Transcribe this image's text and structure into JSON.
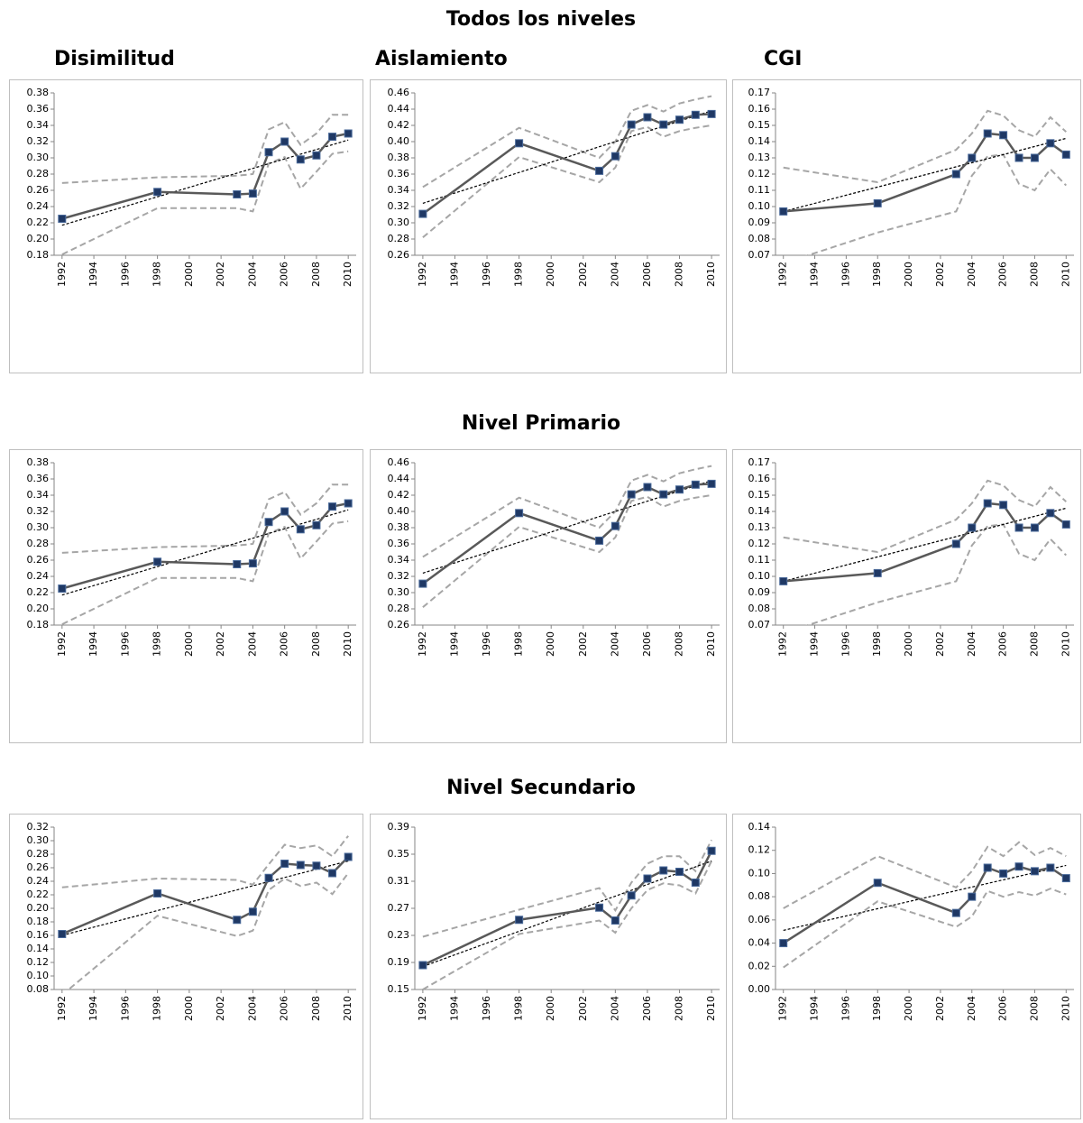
{
  "row_titles": [
    "Todos los niveles",
    "Nivel Primario",
    "Nivel Secundario"
  ],
  "column_titles": [
    "Disimilitud",
    "Aislamiento",
    "CGI"
  ],
  "chart_data": [
    {
      "type": "line",
      "x": [
        1992,
        1998,
        2003,
        2004,
        2005,
        2006,
        2007,
        2008,
        2009,
        2010
      ],
      "values": [
        0.225,
        0.258,
        0.255,
        0.256,
        0.307,
        0.32,
        0.298,
        0.303,
        0.326,
        0.33
      ],
      "upper": [
        0.269,
        0.276,
        0.278,
        0.28,
        0.335,
        0.344,
        0.316,
        0.33,
        0.353,
        0.353
      ],
      "lower": [
        0.181,
        0.238,
        0.238,
        0.234,
        0.293,
        0.301,
        0.262,
        0.283,
        0.305,
        0.308
      ],
      "trend": {
        "x": [
          1992,
          2010
        ],
        "values": [
          0.217,
          0.322
        ]
      },
      "xlim": [
        1991.5,
        2010.5
      ],
      "xticks": [
        1992,
        1994,
        1996,
        1998,
        2000,
        2002,
        2004,
        2006,
        2008,
        2010
      ],
      "ylim": [
        0.18,
        0.38
      ],
      "yticks": [
        0.18,
        {
          "value": 0.2,
          "label": "0.20"
        },
        0.22,
        0.24,
        0.26,
        0.28,
        {
          "value": 0.3,
          "label": "0.30"
        },
        0.32,
        0.34,
        0.36,
        0.38
      ],
      "color": "#595959",
      "marker_color": "#1f3864",
      "ci_color": "#a6a6a6",
      "trend_color": "#000000"
    },
    {
      "type": "line",
      "x": [
        1992,
        1998,
        2003,
        2004,
        2005,
        2006,
        2007,
        2008,
        2009,
        2010
      ],
      "values": [
        0.311,
        0.398,
        0.364,
        0.382,
        0.421,
        0.43,
        0.421,
        0.427,
        0.433,
        0.434
      ],
      "upper": [
        0.344,
        0.417,
        0.38,
        0.4,
        0.438,
        0.445,
        0.437,
        0.447,
        0.452,
        0.456
      ],
      "lower": [
        0.282,
        0.381,
        0.35,
        0.368,
        0.413,
        0.418,
        0.406,
        0.413,
        0.417,
        0.42
      ],
      "trend": {
        "x": [
          1992,
          2010
        ],
        "values": [
          0.324,
          0.438
        ]
      },
      "xlim": [
        1991.5,
        2010.5
      ],
      "xticks": [
        1992,
        1994,
        1996,
        1998,
        2000,
        2002,
        2004,
        2006,
        2008,
        2010
      ],
      "ylim": [
        0.26,
        0.46
      ],
      "yticks": [
        0.26,
        0.28,
        {
          "value": 0.3,
          "label": "0.30"
        },
        0.32,
        0.34,
        0.36,
        0.38,
        {
          "value": 0.4,
          "label": "0.40"
        },
        0.42,
        0.44,
        0.46
      ],
      "color": "#595959",
      "marker_color": "#1f3864",
      "ci_color": "#a6a6a6",
      "trend_color": "#000000"
    },
    {
      "type": "line",
      "x": [
        1992,
        1998,
        2003,
        2004,
        2005,
        2006,
        2007,
        2008,
        2009,
        2010
      ],
      "values": [
        0.097,
        0.102,
        0.12,
        0.13,
        0.145,
        0.144,
        0.13,
        0.13,
        0.139,
        0.132
      ],
      "upper": [
        0.124,
        0.115,
        0.135,
        0.145,
        0.159,
        0.156,
        0.147,
        0.143,
        0.155,
        0.146
      ],
      "lower": [
        0.065,
        0.084,
        0.097,
        0.119,
        0.131,
        0.132,
        0.114,
        0.11,
        0.123,
        0.113
      ],
      "trend": {
        "x": [
          1992,
          2010
        ],
        "values": [
          0.097,
          0.142
        ]
      },
      "xlim": [
        1991.5,
        2010.5
      ],
      "xticks": [
        1992,
        1994,
        1996,
        1998,
        2000,
        2002,
        2004,
        2006,
        2008,
        2010
      ],
      "ylim": [
        0.07,
        0.17
      ],
      "yticks": [
        0.07,
        0.08,
        0.09,
        {
          "value": 0.1,
          "label": "0.10"
        },
        0.11,
        0.12,
        0.13,
        0.14,
        0.15,
        0.16,
        0.17
      ],
      "color": "#595959",
      "marker_color": "#1f3864",
      "ci_color": "#a6a6a6",
      "trend_color": "#000000"
    },
    {
      "type": "line",
      "x": [
        1992,
        1998,
        2003,
        2004,
        2005,
        2006,
        2007,
        2008,
        2009,
        2010
      ],
      "values": [
        0.225,
        0.258,
        0.255,
        0.256,
        0.307,
        0.32,
        0.298,
        0.303,
        0.326,
        0.33
      ],
      "upper": [
        0.269,
        0.276,
        0.278,
        0.28,
        0.335,
        0.344,
        0.316,
        0.33,
        0.353,
        0.353
      ],
      "lower": [
        0.181,
        0.238,
        0.238,
        0.234,
        0.293,
        0.301,
        0.262,
        0.283,
        0.305,
        0.308
      ],
      "trend": {
        "x": [
          1992,
          2010
        ],
        "values": [
          0.217,
          0.322
        ]
      },
      "xlim": [
        1991.5,
        2010.5
      ],
      "xticks": [
        1992,
        1994,
        1996,
        1998,
        2000,
        2002,
        2004,
        2006,
        2008,
        2010
      ],
      "ylim": [
        0.18,
        0.38
      ],
      "yticks": [
        0.18,
        {
          "value": 0.2,
          "label": "0.20"
        },
        0.22,
        0.24,
        0.26,
        0.28,
        {
          "value": 0.3,
          "label": "0.30"
        },
        0.32,
        0.34,
        0.36,
        0.38
      ],
      "color": "#595959",
      "marker_color": "#1f3864",
      "ci_color": "#a6a6a6",
      "trend_color": "#000000"
    },
    {
      "type": "line",
      "x": [
        1992,
        1998,
        2003,
        2004,
        2005,
        2006,
        2007,
        2008,
        2009,
        2010
      ],
      "values": [
        0.311,
        0.398,
        0.364,
        0.382,
        0.421,
        0.43,
        0.421,
        0.427,
        0.433,
        0.434
      ],
      "upper": [
        0.344,
        0.417,
        0.38,
        0.4,
        0.438,
        0.445,
        0.437,
        0.447,
        0.452,
        0.456
      ],
      "lower": [
        0.282,
        0.381,
        0.35,
        0.368,
        0.413,
        0.418,
        0.406,
        0.413,
        0.417,
        0.42
      ],
      "trend": {
        "x": [
          1992,
          2010
        ],
        "values": [
          0.324,
          0.438
        ]
      },
      "xlim": [
        1991.5,
        2010.5
      ],
      "xticks": [
        1992,
        1994,
        1996,
        1998,
        2000,
        2002,
        2004,
        2006,
        2008,
        2010
      ],
      "ylim": [
        0.26,
        0.46
      ],
      "yticks": [
        0.26,
        0.28,
        {
          "value": 0.3,
          "label": "0.30"
        },
        0.32,
        0.34,
        0.36,
        0.38,
        {
          "value": 0.4,
          "label": "0.40"
        },
        0.42,
        0.44,
        0.46
      ],
      "color": "#595959",
      "marker_color": "#1f3864",
      "ci_color": "#a6a6a6",
      "trend_color": "#000000"
    },
    {
      "type": "line",
      "x": [
        1992,
        1998,
        2003,
        2004,
        2005,
        2006,
        2007,
        2008,
        2009,
        2010
      ],
      "values": [
        0.097,
        0.102,
        0.12,
        0.13,
        0.145,
        0.144,
        0.13,
        0.13,
        0.139,
        0.132
      ],
      "upper": [
        0.124,
        0.115,
        0.135,
        0.145,
        0.159,
        0.156,
        0.147,
        0.143,
        0.155,
        0.146
      ],
      "lower": [
        0.065,
        0.084,
        0.097,
        0.119,
        0.131,
        0.132,
        0.114,
        0.11,
        0.123,
        0.113
      ],
      "trend": {
        "x": [
          1992,
          2010
        ],
        "values": [
          0.097,
          0.142
        ]
      },
      "xlim": [
        1991.5,
        2010.5
      ],
      "xticks": [
        1992,
        1994,
        1996,
        1998,
        2000,
        2002,
        2004,
        2006,
        2008,
        2010
      ],
      "ylim": [
        0.07,
        0.17
      ],
      "yticks": [
        0.07,
        0.08,
        0.09,
        {
          "value": 0.1,
          "label": "0.10"
        },
        0.11,
        0.12,
        0.13,
        0.14,
        0.15,
        0.16,
        0.17
      ],
      "color": "#595959",
      "marker_color": "#1f3864",
      "ci_color": "#a6a6a6",
      "trend_color": "#000000"
    },
    {
      "type": "line",
      "x": [
        1992,
        1998,
        2003,
        2004,
        2005,
        2006,
        2007,
        2008,
        2009,
        2010
      ],
      "values": [
        0.162,
        0.222,
        0.183,
        0.195,
        0.245,
        0.266,
        0.264,
        0.263,
        0.252,
        0.276
      ],
      "upper": [
        0.231,
        0.244,
        0.242,
        0.235,
        0.265,
        0.294,
        0.289,
        0.293,
        0.277,
        0.307
      ],
      "lower": [
        0.072,
        0.189,
        0.159,
        0.167,
        0.227,
        0.244,
        0.233,
        0.238,
        0.221,
        0.252
      ],
      "trend": {
        "x": [
          1992,
          2010
        ],
        "values": [
          0.16,
          0.27
        ]
      },
      "xlim": [
        1991.5,
        2010.5
      ],
      "xticks": [
        1992,
        1994,
        1996,
        1998,
        2000,
        2002,
        2004,
        2006,
        2008,
        2010
      ],
      "ylim": [
        0.08,
        0.32
      ],
      "yticks": [
        0.08,
        {
          "value": 0.1,
          "label": "0.10"
        },
        0.12,
        0.14,
        0.16,
        0.18,
        {
          "value": 0.2,
          "label": "0.20"
        },
        0.22,
        0.24,
        0.26,
        0.28,
        {
          "value": 0.3,
          "label": "0.30"
        },
        0.32
      ],
      "color": "#595959",
      "marker_color": "#1f3864",
      "ci_color": "#a6a6a6",
      "trend_color": "#000000"
    },
    {
      "type": "line",
      "x": [
        1992,
        1998,
        2003,
        2004,
        2005,
        2006,
        2007,
        2008,
        2009,
        2010
      ],
      "values": [
        0.186,
        0.253,
        0.271,
        0.252,
        0.289,
        0.314,
        0.326,
        0.324,
        0.308,
        0.355
      ],
      "upper": [
        0.228,
        0.268,
        0.3,
        0.267,
        0.308,
        0.336,
        0.347,
        0.347,
        0.325,
        0.371
      ],
      "lower": [
        0.15,
        0.232,
        0.252,
        0.234,
        0.27,
        0.297,
        0.307,
        0.304,
        0.292,
        0.34
      ],
      "trend": {
        "x": [
          1992,
          2010
        ],
        "values": [
          0.184,
          0.34
        ]
      },
      "xlim": [
        1991.5,
        2010.5
      ],
      "xticks": [
        1992,
        1994,
        1996,
        1998,
        2000,
        2002,
        2004,
        2006,
        2008,
        2010
      ],
      "ylim": [
        0.15,
        0.39
      ],
      "yticks": [
        0.15,
        0.19,
        0.23,
        0.27,
        0.31,
        0.35,
        0.39
      ],
      "color": "#595959",
      "marker_color": "#1f3864",
      "ci_color": "#a6a6a6",
      "trend_color": "#000000"
    },
    {
      "type": "line",
      "x": [
        1992,
        1998,
        2003,
        2004,
        2005,
        2006,
        2007,
        2008,
        2009,
        2010
      ],
      "values": [
        0.04,
        0.092,
        0.066,
        0.08,
        0.105,
        0.1,
        0.106,
        0.102,
        0.105,
        0.096
      ],
      "upper": [
        0.07,
        0.115,
        0.088,
        0.102,
        0.123,
        0.115,
        0.127,
        0.116,
        0.122,
        0.115
      ],
      "lower": [
        0.019,
        0.076,
        0.054,
        0.063,
        0.085,
        0.08,
        0.084,
        0.081,
        0.087,
        0.082
      ],
      "trend": {
        "x": [
          1992,
          2010
        ],
        "values": [
          0.051,
          0.107
        ]
      },
      "xlim": [
        1991.5,
        2010.5
      ],
      "xticks": [
        1992,
        1994,
        1996,
        1998,
        2000,
        2002,
        2004,
        2006,
        2008,
        2010
      ],
      "ylim": [
        0,
        0.14
      ],
      "yticks": [
        {
          "value": 0,
          "label": "0.00"
        },
        0.02,
        0.04,
        0.06,
        0.08,
        {
          "value": 0.1,
          "label": "0.10"
        },
        0.12,
        0.14
      ],
      "color": "#595959",
      "marker_color": "#1f3864",
      "ci_color": "#a6a6a6",
      "trend_color": "#000000"
    }
  ]
}
